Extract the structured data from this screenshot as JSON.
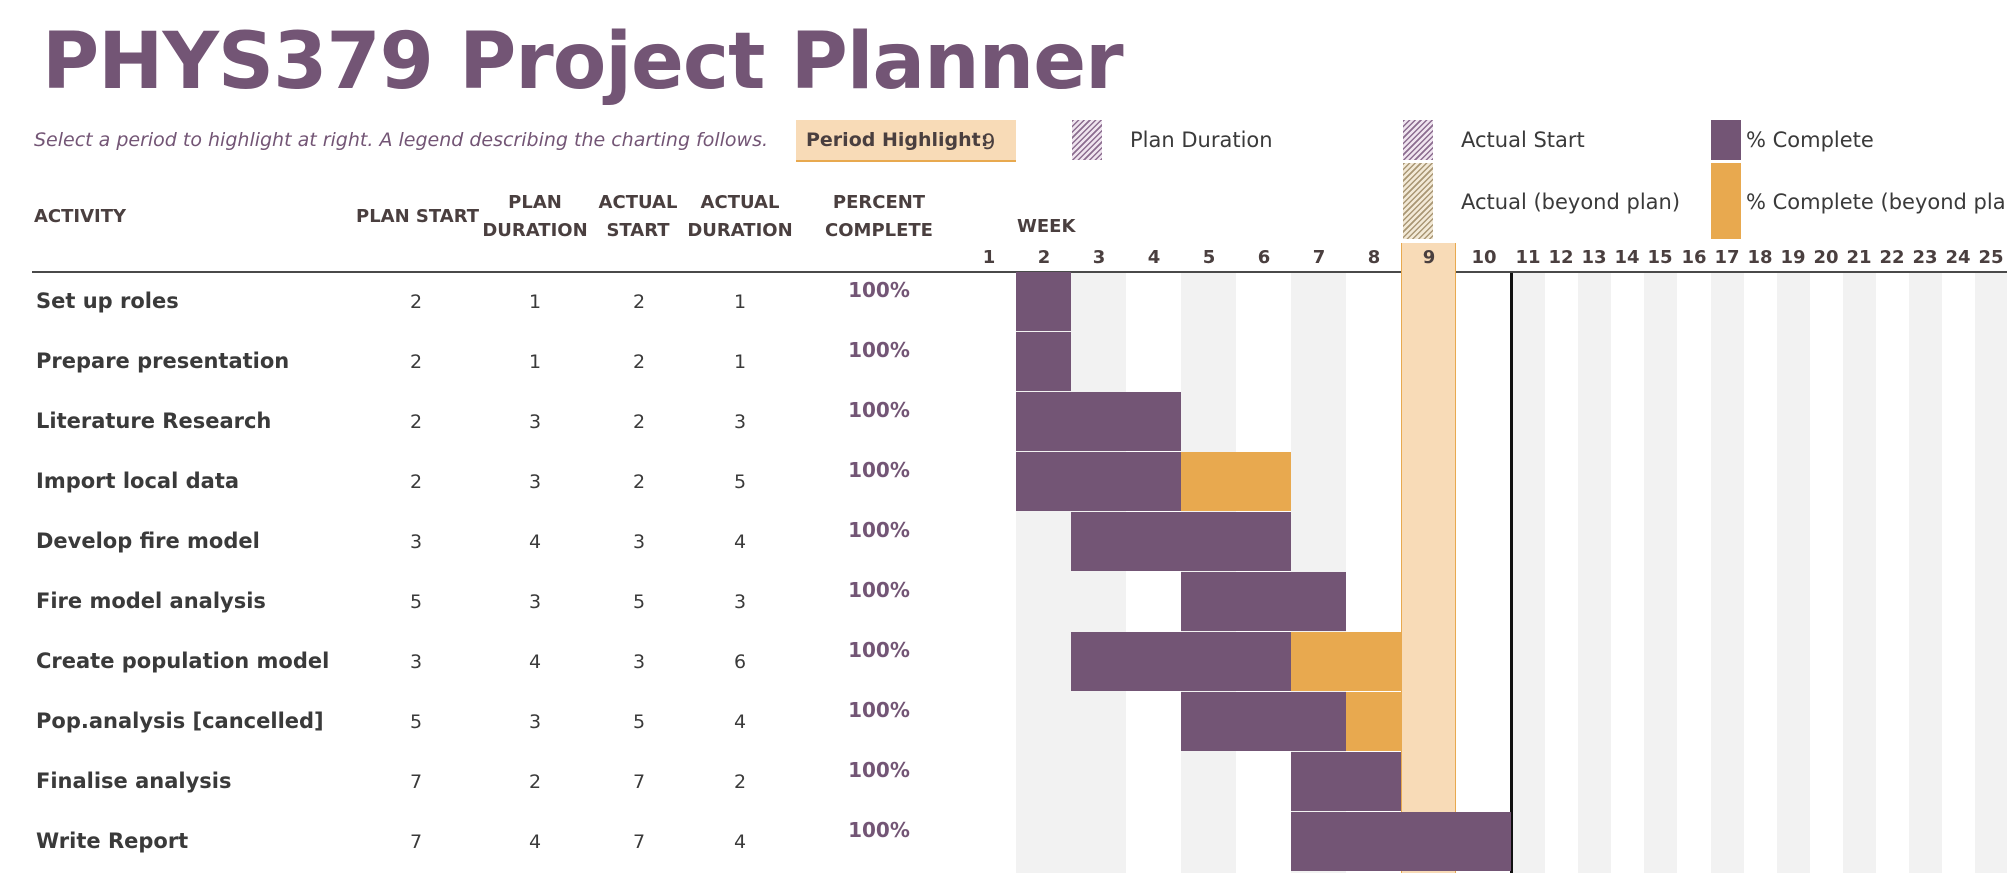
{
  "title": "PHYS379 Project Planner",
  "subtitle": "Select a period to highlight at right.  A legend describing the charting follows.",
  "period_highlight": {
    "label": "Period Highlight:",
    "value": "9"
  },
  "legend": {
    "plan_duration": "Plan Duration",
    "actual_start": "Actual Start",
    "percent_complete": "% Complete",
    "actual_beyond_plan": "Actual (beyond plan)",
    "percent_complete_beyond_plan": "% Complete (beyond plan)"
  },
  "colors": {
    "accent_purple": "#735575",
    "beyond_orange": "#e8a94f",
    "highlight_fill": "#f8dbb7",
    "shade_gray": "#f2f2f2"
  },
  "columns": {
    "activity": "ACTIVITY",
    "plan_start": "PLAN START",
    "plan_duration": [
      "PLAN",
      "DURATION"
    ],
    "actual_start": [
      "ACTUAL",
      "START"
    ],
    "actual_duration": [
      "ACTUAL",
      "DURATION"
    ],
    "percent_complete": [
      "PERCENT",
      "COMPLETE"
    ],
    "week": "WEEK"
  },
  "weeks": [
    "1",
    "2",
    "3",
    "4",
    "5",
    "6",
    "7",
    "8",
    "9",
    "10",
    "11",
    "12",
    "13",
    "14",
    "15",
    "16",
    "17",
    "18",
    "19",
    "20",
    "21",
    "22",
    "23",
    "24",
    "25"
  ],
  "activities": [
    {
      "name": "Set up roles",
      "plan_start": 2,
      "plan_duration": 1,
      "actual_start": 2,
      "actual_duration": 1,
      "percent": "100%"
    },
    {
      "name": "Prepare presentation",
      "plan_start": 2,
      "plan_duration": 1,
      "actual_start": 2,
      "actual_duration": 1,
      "percent": "100%"
    },
    {
      "name": "Literature Research",
      "plan_start": 2,
      "plan_duration": 3,
      "actual_start": 2,
      "actual_duration": 3,
      "percent": "100%"
    },
    {
      "name": "Import local data",
      "plan_start": 2,
      "plan_duration": 3,
      "actual_start": 2,
      "actual_duration": 5,
      "percent": "100%"
    },
    {
      "name": "Develop fire model",
      "plan_start": 3,
      "plan_duration": 4,
      "actual_start": 3,
      "actual_duration": 4,
      "percent": "100%"
    },
    {
      "name": "Fire model analysis",
      "plan_start": 5,
      "plan_duration": 3,
      "actual_start": 5,
      "actual_duration": 3,
      "percent": "100%"
    },
    {
      "name": "Create population model",
      "plan_start": 3,
      "plan_duration": 4,
      "actual_start": 3,
      "actual_duration": 6,
      "percent": "100%"
    },
    {
      "name": "Pop.analysis [cancelled]",
      "plan_start": 5,
      "plan_duration": 3,
      "actual_start": 5,
      "actual_duration": 4,
      "percent": "100%"
    },
    {
      "name": "Finalise analysis",
      "plan_start": 7,
      "plan_duration": 2,
      "actual_start": 7,
      "actual_duration": 2,
      "percent": "100%"
    },
    {
      "name": "Write Report",
      "plan_start": 7,
      "plan_duration": 4,
      "actual_start": 7,
      "actual_duration": 4,
      "percent": "100%"
    }
  ]
}
